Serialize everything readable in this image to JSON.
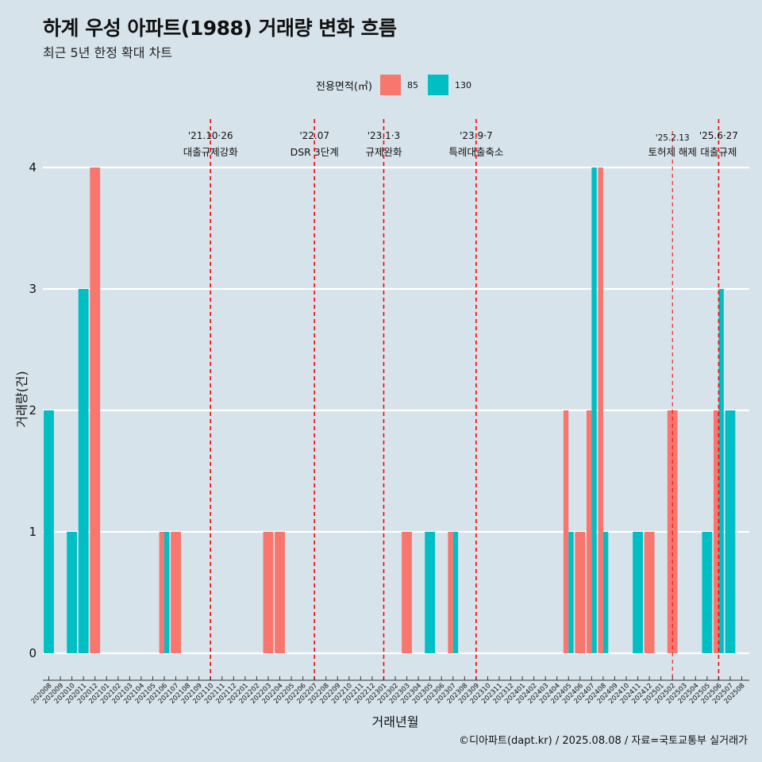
{
  "title": "하계 우성 아파트(1988) 거래량 변화 흐름",
  "subtitle": "최근 5년 한정 확대 차트",
  "caption": "©디아파트(dapt.kr) / 2025.08.08 / 자료=국토교통부 실거래가",
  "legend": {
    "title": "전용면적(㎡)",
    "items": [
      {
        "label": "85",
        "color": "#f8766d"
      },
      {
        "label": "130",
        "color": "#00bfc4"
      }
    ]
  },
  "chart_data": {
    "type": "bar",
    "xlabel": "거래년월",
    "ylabel": "거래량(건)",
    "ylim": [
      0,
      4
    ],
    "yticks": [
      "0",
      "1",
      "2",
      "3",
      "4"
    ],
    "categories": [
      "202008",
      "202009",
      "202010",
      "202011",
      "202012",
      "202101",
      "202102",
      "202103",
      "202104",
      "202105",
      "202106",
      "202107",
      "202108",
      "202109",
      "202110",
      "202111",
      "202112",
      "202201",
      "202202",
      "202203",
      "202204",
      "202205",
      "202206",
      "202207",
      "202208",
      "202209",
      "202210",
      "202211",
      "202212",
      "202301",
      "202302",
      "202303",
      "202304",
      "202305",
      "202306",
      "202307",
      "202308",
      "202309",
      "202310",
      "202311",
      "202312",
      "202401",
      "202402",
      "202403",
      "202404",
      "202405",
      "202406",
      "202407",
      "202408",
      "202409",
      "202410",
      "202411",
      "202412",
      "202501",
      "202502",
      "202503",
      "202504",
      "202505",
      "202506",
      "202507",
      "202508"
    ],
    "series": [
      {
        "name": "85",
        "color": "#f8766d",
        "values": [
          0,
          0,
          0,
          0,
          4,
          0,
          0,
          0,
          0,
          0,
          1,
          1,
          0,
          0,
          0,
          0,
          0,
          0,
          0,
          1,
          1,
          0,
          0,
          0,
          0,
          0,
          0,
          0,
          0,
          0,
          0,
          1,
          0,
          0,
          0,
          1,
          0,
          0,
          0,
          0,
          0,
          0,
          0,
          0,
          0,
          2,
          1,
          2,
          4,
          0,
          0,
          0,
          1,
          0,
          2,
          0,
          0,
          0,
          2,
          0,
          0
        ]
      },
      {
        "name": "130",
        "color": "#00bfc4",
        "values": [
          2,
          0,
          1,
          3,
          0,
          0,
          0,
          0,
          0,
          0,
          1,
          0,
          0,
          0,
          0,
          0,
          0,
          0,
          0,
          0,
          0,
          0,
          0,
          0,
          0,
          0,
          0,
          0,
          0,
          0,
          0,
          0,
          0,
          1,
          0,
          1,
          0,
          0,
          0,
          0,
          0,
          0,
          0,
          0,
          0,
          1,
          0,
          4,
          1,
          0,
          0,
          1,
          0,
          0,
          0,
          0,
          0,
          1,
          3,
          2,
          0
        ]
      }
    ],
    "events": [
      {
        "date": "'21.10·26",
        "label": "대출규제강화",
        "month": "202110"
      },
      {
        "date": "'22.07",
        "label": "DSR 3단계",
        "month": "202207"
      },
      {
        "date": "'23.1·3",
        "label": "규제완화",
        "month": "202301"
      },
      {
        "date": "'23.9·7",
        "label": "특례대출축소",
        "month": "202309"
      },
      {
        "date": "'25.2.13",
        "label": "토허제 해제",
        "month": "202502"
      },
      {
        "date": "'25.6·27",
        "label": "대출규제",
        "month": "202506"
      }
    ],
    "grid": true
  }
}
